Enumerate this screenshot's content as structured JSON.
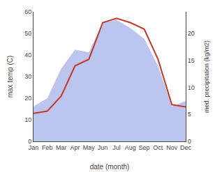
{
  "chart_data": {
    "type": "line",
    "categories": [
      "Jan",
      "Feb",
      "Mar",
      "Apr",
      "May",
      "Jun",
      "Jul",
      "Aug",
      "Sep",
      "Oct",
      "Nov",
      "Dec"
    ],
    "series": [
      {
        "type": "area",
        "color": "#bcc5ee",
        "axis": "y2",
        "values": [
          6.5,
          8,
          13.5,
          17,
          16.5,
          22,
          22.5,
          21,
          19,
          14,
          6.5,
          7.5
        ]
      },
      {
        "type": "line",
        "color": "#c0392b",
        "values": [
          13,
          14,
          21,
          35,
          38,
          55,
          57,
          55,
          52,
          38,
          17,
          16
        ]
      }
    ],
    "xlabel": "date (month)",
    "ylabel": "max temp (C)",
    "y2label": "med. precipitation (kg/m2)",
    "ylim": [
      0,
      60
    ],
    "yticks": [
      0,
      10,
      20,
      30,
      40,
      50,
      60
    ],
    "y2lim": [
      0,
      24
    ],
    "y2ticks": [
      0,
      5,
      10,
      15,
      20
    ],
    "grid": false
  }
}
